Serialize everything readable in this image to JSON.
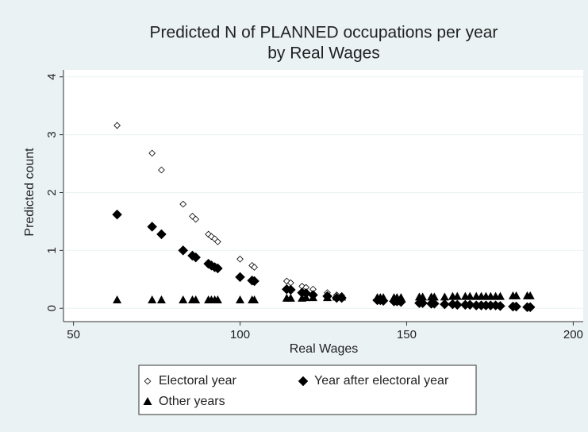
{
  "chart_data": {
    "type": "scatter",
    "title": [
      "Predicted N of PLANNED occupations per year",
      "by Real Wages"
    ],
    "xlabel": "Real Wages",
    "ylabel": "Predicted count",
    "xlim": [
      47,
      203
    ],
    "ylim": [
      -0.23,
      4.12
    ],
    "xticks": [
      50,
      100,
      150,
      200
    ],
    "yticks": [
      0,
      1,
      2,
      3,
      4
    ],
    "grid": true,
    "x": [
      63.1,
      73.6,
      76.4,
      82.9,
      85.7,
      86.7,
      90.5,
      91.4,
      92.4,
      93.3,
      100,
      103.6,
      104.3,
      114,
      115.2,
      118.6,
      119.8,
      121.9,
      126.2,
      129,
      130.5,
      141.2,
      142.1,
      143,
      146.2,
      147.1,
      148.3,
      153.8,
      154.8,
      157.4,
      158.3,
      161.4,
      163.8,
      165.2,
      167.6,
      169,
      170.9,
      172.4,
      173.8,
      175.2,
      176.7,
      178.1,
      181.9,
      182.9,
      186.2,
      187.1
    ],
    "series": [
      {
        "name": "Electoral year",
        "color": "#000000",
        "marker": "diamond-open",
        "values": [
          3.16,
          2.68,
          2.39,
          1.8,
          1.59,
          1.54,
          1.28,
          1.24,
          1.2,
          1.15,
          0.85,
          0.74,
          0.71,
          0.47,
          0.44,
          0.38,
          0.36,
          0.33,
          0.27,
          0.23,
          0.22,
          0.13,
          0.13,
          0.12,
          0.11,
          0.11,
          0.1,
          0.08,
          0.08,
          0.07,
          0.07,
          0.06,
          0.06,
          0.05,
          0.05,
          0.05,
          0.04,
          0.04,
          0.04,
          0.04,
          0.04,
          0.03,
          0.03,
          0.03,
          0.02,
          0.02
        ]
      },
      {
        "name": "Year after electoral year",
        "color": "#000000",
        "marker": "diamond",
        "values": [
          1.62,
          1.41,
          1.28,
          1.0,
          0.91,
          0.88,
          0.77,
          0.74,
          0.71,
          0.69,
          0.54,
          0.48,
          0.47,
          0.33,
          0.32,
          0.27,
          0.26,
          0.23,
          0.21,
          0.18,
          0.18,
          0.14,
          0.14,
          0.13,
          0.12,
          0.12,
          0.11,
          0.09,
          0.09,
          0.08,
          0.08,
          0.07,
          0.07,
          0.06,
          0.06,
          0.06,
          0.05,
          0.05,
          0.05,
          0.05,
          0.05,
          0.04,
          0.03,
          0.03,
          0.02,
          0.02
        ]
      },
      {
        "name": "Other years",
        "color": "#000000",
        "marker": "triangle",
        "values": [
          0.14,
          0.14,
          0.14,
          0.14,
          0.14,
          0.14,
          0.14,
          0.14,
          0.14,
          0.14,
          0.14,
          0.14,
          0.14,
          0.17,
          0.17,
          0.17,
          0.18,
          0.18,
          0.18,
          0.19,
          0.19,
          0.18,
          0.18,
          0.18,
          0.18,
          0.18,
          0.18,
          0.19,
          0.19,
          0.19,
          0.19,
          0.19,
          0.2,
          0.2,
          0.2,
          0.2,
          0.2,
          0.2,
          0.2,
          0.2,
          0.2,
          0.2,
          0.21,
          0.21,
          0.21,
          0.21
        ]
      }
    ]
  }
}
